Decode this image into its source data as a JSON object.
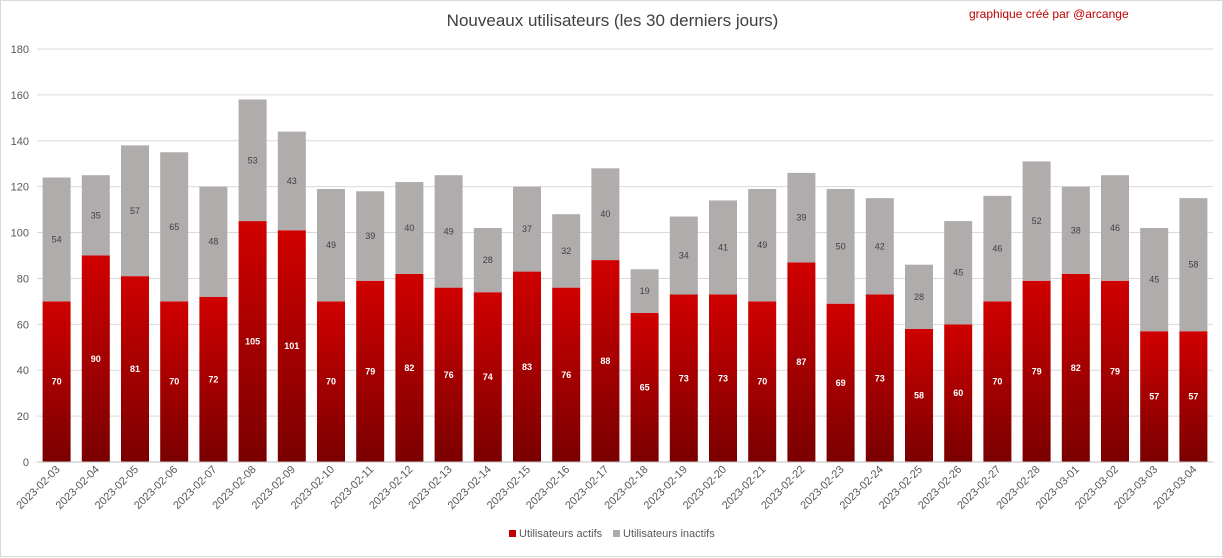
{
  "chart_data": {
    "type": "bar",
    "stacked": true,
    "title": "Nouveaux utilisateurs  (les 30 derniers  jours)",
    "credit": "graphique créé par @arcange",
    "categories": [
      "2023-02-03",
      "2023-02-04",
      "2023-02-05",
      "2023-02-06",
      "2023-02-07",
      "2023-02-08",
      "2023-02-09",
      "2023-02-10",
      "2023-02-11",
      "2023-02-12",
      "2023-02-13",
      "2023-02-14",
      "2023-02-15",
      "2023-02-16",
      "2023-02-17",
      "2023-02-18",
      "2023-02-19",
      "2023-02-20",
      "2023-02-21",
      "2023-02-22",
      "2023-02-23",
      "2023-02-24",
      "2023-02-25",
      "2023-02-26",
      "2023-02-27",
      "2023-02-28",
      "2023-03-01",
      "2023-03-02",
      "2023-03-03",
      "2023-03-04"
    ],
    "series": [
      {
        "name": "Utilisateurs actifs",
        "color": "#c00000",
        "values": [
          70,
          90,
          81,
          70,
          72,
          105,
          101,
          70,
          79,
          82,
          76,
          74,
          83,
          76,
          88,
          65,
          73,
          73,
          70,
          87,
          69,
          73,
          58,
          60,
          70,
          79,
          82,
          79,
          57,
          57
        ]
      },
      {
        "name": "Utilisateurs inactifs",
        "color": "#b0acac",
        "values": [
          54,
          35,
          57,
          65,
          48,
          53,
          43,
          49,
          39,
          40,
          49,
          28,
          37,
          32,
          40,
          19,
          34,
          41,
          49,
          39,
          50,
          42,
          28,
          45,
          46,
          52,
          38,
          46,
          45,
          58
        ]
      }
    ],
    "ylim": [
      0,
      180
    ],
    "yticks": [
      0,
      20,
      40,
      60,
      80,
      100,
      120,
      140,
      160,
      180
    ],
    "grid": true,
    "legend_position": "bottom"
  }
}
